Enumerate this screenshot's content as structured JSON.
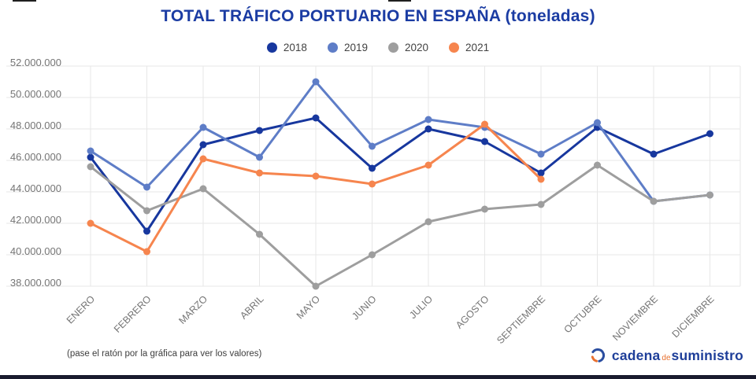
{
  "title": "TOTAL TRÁFICO PORTUARIO EN ESPAÑA (toneladas)",
  "footer": {
    "note": "(pase el ratón por la gráfica para ver los valores)",
    "logo": {
      "word1": "cadena",
      "word2": "de",
      "word3": "suministro"
    }
  },
  "colors": {
    "title": "#1b3ca3",
    "grid": "#e7e7e7",
    "axis_label": "#757575",
    "bottom_bar": "#191b2e"
  },
  "chart_data": {
    "type": "line",
    "title": "TOTAL TRÁFICO PORTUARIO EN ESPAÑA (toneladas)",
    "xlabel": "",
    "ylabel": "",
    "grid": true,
    "legend_position": "top",
    "categories": [
      "ENERO",
      "FEBRERO",
      "MARZO",
      "ABRIL",
      "MAYO",
      "JUNIO",
      "JULIO",
      "AGOSTO",
      "SEPTIEMBRE",
      "OCTUBRE",
      "NOVIEMBRE",
      "DICIEMBRE"
    ],
    "series": [
      {
        "name": "2018",
        "color": "#17379e",
        "values": [
          46200000,
          41500000,
          47000000,
          47900000,
          48700000,
          45500000,
          48000000,
          47200000,
          45200000,
          48100000,
          46400000,
          47700000
        ]
      },
      {
        "name": "2019",
        "color": "#5e7dc7",
        "values": [
          46600000,
          44300000,
          48100000,
          46200000,
          51000000,
          46900000,
          48600000,
          48100000,
          46400000,
          48400000,
          43400000,
          43800000
        ]
      },
      {
        "name": "2020",
        "color": "#9e9e9e",
        "values": [
          45600000,
          42800000,
          44200000,
          41300000,
          38000000,
          40000000,
          42100000,
          42900000,
          43200000,
          45700000,
          43400000,
          43800000
        ]
      },
      {
        "name": "2021",
        "color": "#f6854e",
        "values": [
          42000000,
          40200000,
          46100000,
          45200000,
          45000000,
          44500000,
          45700000,
          48300000,
          44800000,
          null,
          null,
          null
        ]
      }
    ],
    "ylim": [
      38000000,
      52000000
    ],
    "yticks": {
      "values": [
        52000000,
        50000000,
        48000000,
        46000000,
        44000000,
        42000000,
        40000000,
        38000000
      ],
      "labels": [
        "52.000.000",
        "50.000.000",
        "48.000.000",
        "46.000.000",
        "44.000.000",
        "42.000.000",
        "40.000.000",
        "38.000.000"
      ]
    }
  }
}
